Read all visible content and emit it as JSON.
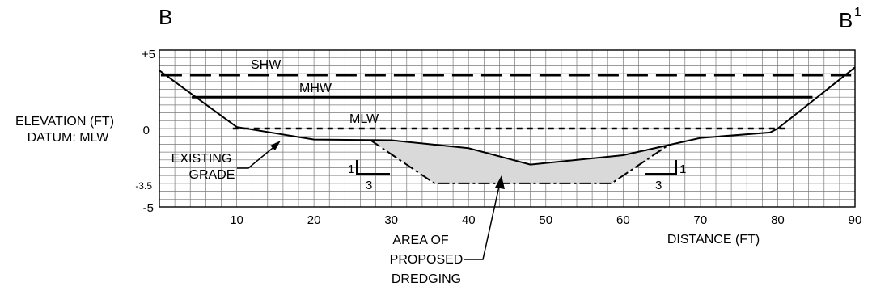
{
  "section": {
    "start_label": "B",
    "end_label": "B",
    "end_label_superscript": "1"
  },
  "y_axis": {
    "label_line1": "ELEVATION (FT)",
    "label_line2": "DATUM: MLW",
    "range": [
      -5,
      5
    ],
    "ticks": [
      {
        "value": 5,
        "label": "+5"
      },
      {
        "value": 0,
        "label": "0"
      },
      {
        "value": -3.5,
        "label": "-3.5"
      },
      {
        "value": -5,
        "label": "-5"
      }
    ]
  },
  "x_axis": {
    "label": "DISTANCE (FT)",
    "range": [
      0,
      90
    ],
    "ticks": [
      "10",
      "20",
      "30",
      "40",
      "50",
      "60",
      "70",
      "80",
      "90"
    ]
  },
  "water_levels": [
    {
      "name": "SHW",
      "elevation": 3.4,
      "x_start": 0.2,
      "x_end": 89.5,
      "style": "long-dash"
    },
    {
      "name": "MHW",
      "elevation": 2.0,
      "x_start": 4.2,
      "x_end": 84.5,
      "style": "solid"
    },
    {
      "name": "MLW",
      "elevation": 0.0,
      "x_start": 9.5,
      "x_end": 81.0,
      "style": "short-dash"
    }
  ],
  "existing_grade": {
    "label_line1": "EXISTING",
    "label_line2": "GRADE",
    "points": [
      [
        0,
        3.7
      ],
      [
        10,
        0.1
      ],
      [
        20,
        -0.7
      ],
      [
        30,
        -0.75
      ],
      [
        40,
        -1.25
      ],
      [
        48,
        -2.3
      ],
      [
        60,
        -1.7
      ],
      [
        70,
        -0.6
      ],
      [
        79,
        -0.25
      ],
      [
        80,
        0
      ],
      [
        90,
        3.9
      ]
    ]
  },
  "proposed_dredging": {
    "label_line1": "AREA OF",
    "label_line2": "PROPOSED",
    "label_line3": "DREDGING",
    "fill_color": "#d9d9d9",
    "design_depth": -3.5,
    "bottom_x": [
      35.6,
      58.5
    ],
    "side_slope_rise": "1",
    "side_slope_run": "3"
  }
}
